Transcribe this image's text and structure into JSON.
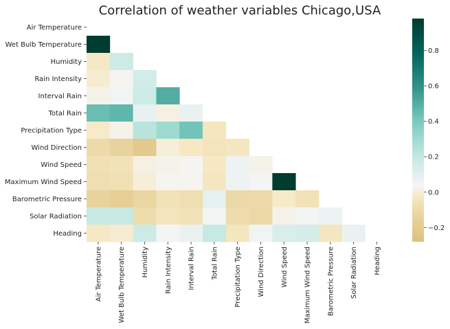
{
  "chart_data": {
    "type": "heatmap",
    "title": "Correlation of weather variables Chicago,USA",
    "variables": [
      "Air Temperature",
      "Wet Bulb Temperature",
      "Humidity",
      "Rain Intensity",
      "Interval Rain",
      "Total Rain",
      "Precipitation Type",
      "Wind Direction",
      "Wind Speed",
      "Maximum Wind Speed",
      "Barometric Pressure",
      "Solar Radiation",
      "Heading"
    ],
    "mask": "upper-triangle-including-diagonal",
    "lower_triangle_values": [
      [],
      [
        0.98
      ],
      [
        -0.03,
        0.17
      ],
      [
        -0.01,
        0.03,
        0.15
      ],
      [
        0.02,
        0.05,
        0.17,
        0.5
      ],
      [
        0.44,
        0.47,
        0.08,
        0.01,
        0.07
      ],
      [
        -0.02,
        0.02,
        0.23,
        0.3,
        0.42,
        -0.04
      ],
      [
        -0.1,
        -0.14,
        -0.22,
        0.0,
        -0.03,
        -0.05,
        -0.04
      ],
      [
        -0.07,
        -0.06,
        0.01,
        0.02,
        0.03,
        -0.03,
        0.06,
        0.02
      ],
      [
        -0.08,
        -0.07,
        0.0,
        0.03,
        0.03,
        -0.04,
        0.06,
        0.04,
        0.98
      ],
      [
        -0.14,
        -0.18,
        -0.12,
        -0.06,
        -0.08,
        0.09,
        -0.11,
        -0.1,
        -0.02,
        -0.06
      ],
      [
        0.19,
        0.19,
        -0.09,
        -0.05,
        -0.06,
        0.05,
        -0.09,
        -0.11,
        0.02,
        0.04,
        0.06
      ],
      [
        -0.03,
        -0.01,
        0.17,
        0.04,
        0.07,
        0.19,
        -0.04,
        0.05,
        0.13,
        0.14,
        -0.04,
        0.07
      ]
    ],
    "colorbar": {
      "colormap": "BrBG",
      "vmin": -0.28,
      "vmax": 0.98,
      "ticks": [
        -0.2,
        0.0,
        0.2,
        0.4,
        0.6,
        0.8
      ],
      "tick_labels": [
        "−0.2",
        "0.0",
        "0.2",
        "0.4",
        "0.6",
        "0.8"
      ]
    }
  }
}
